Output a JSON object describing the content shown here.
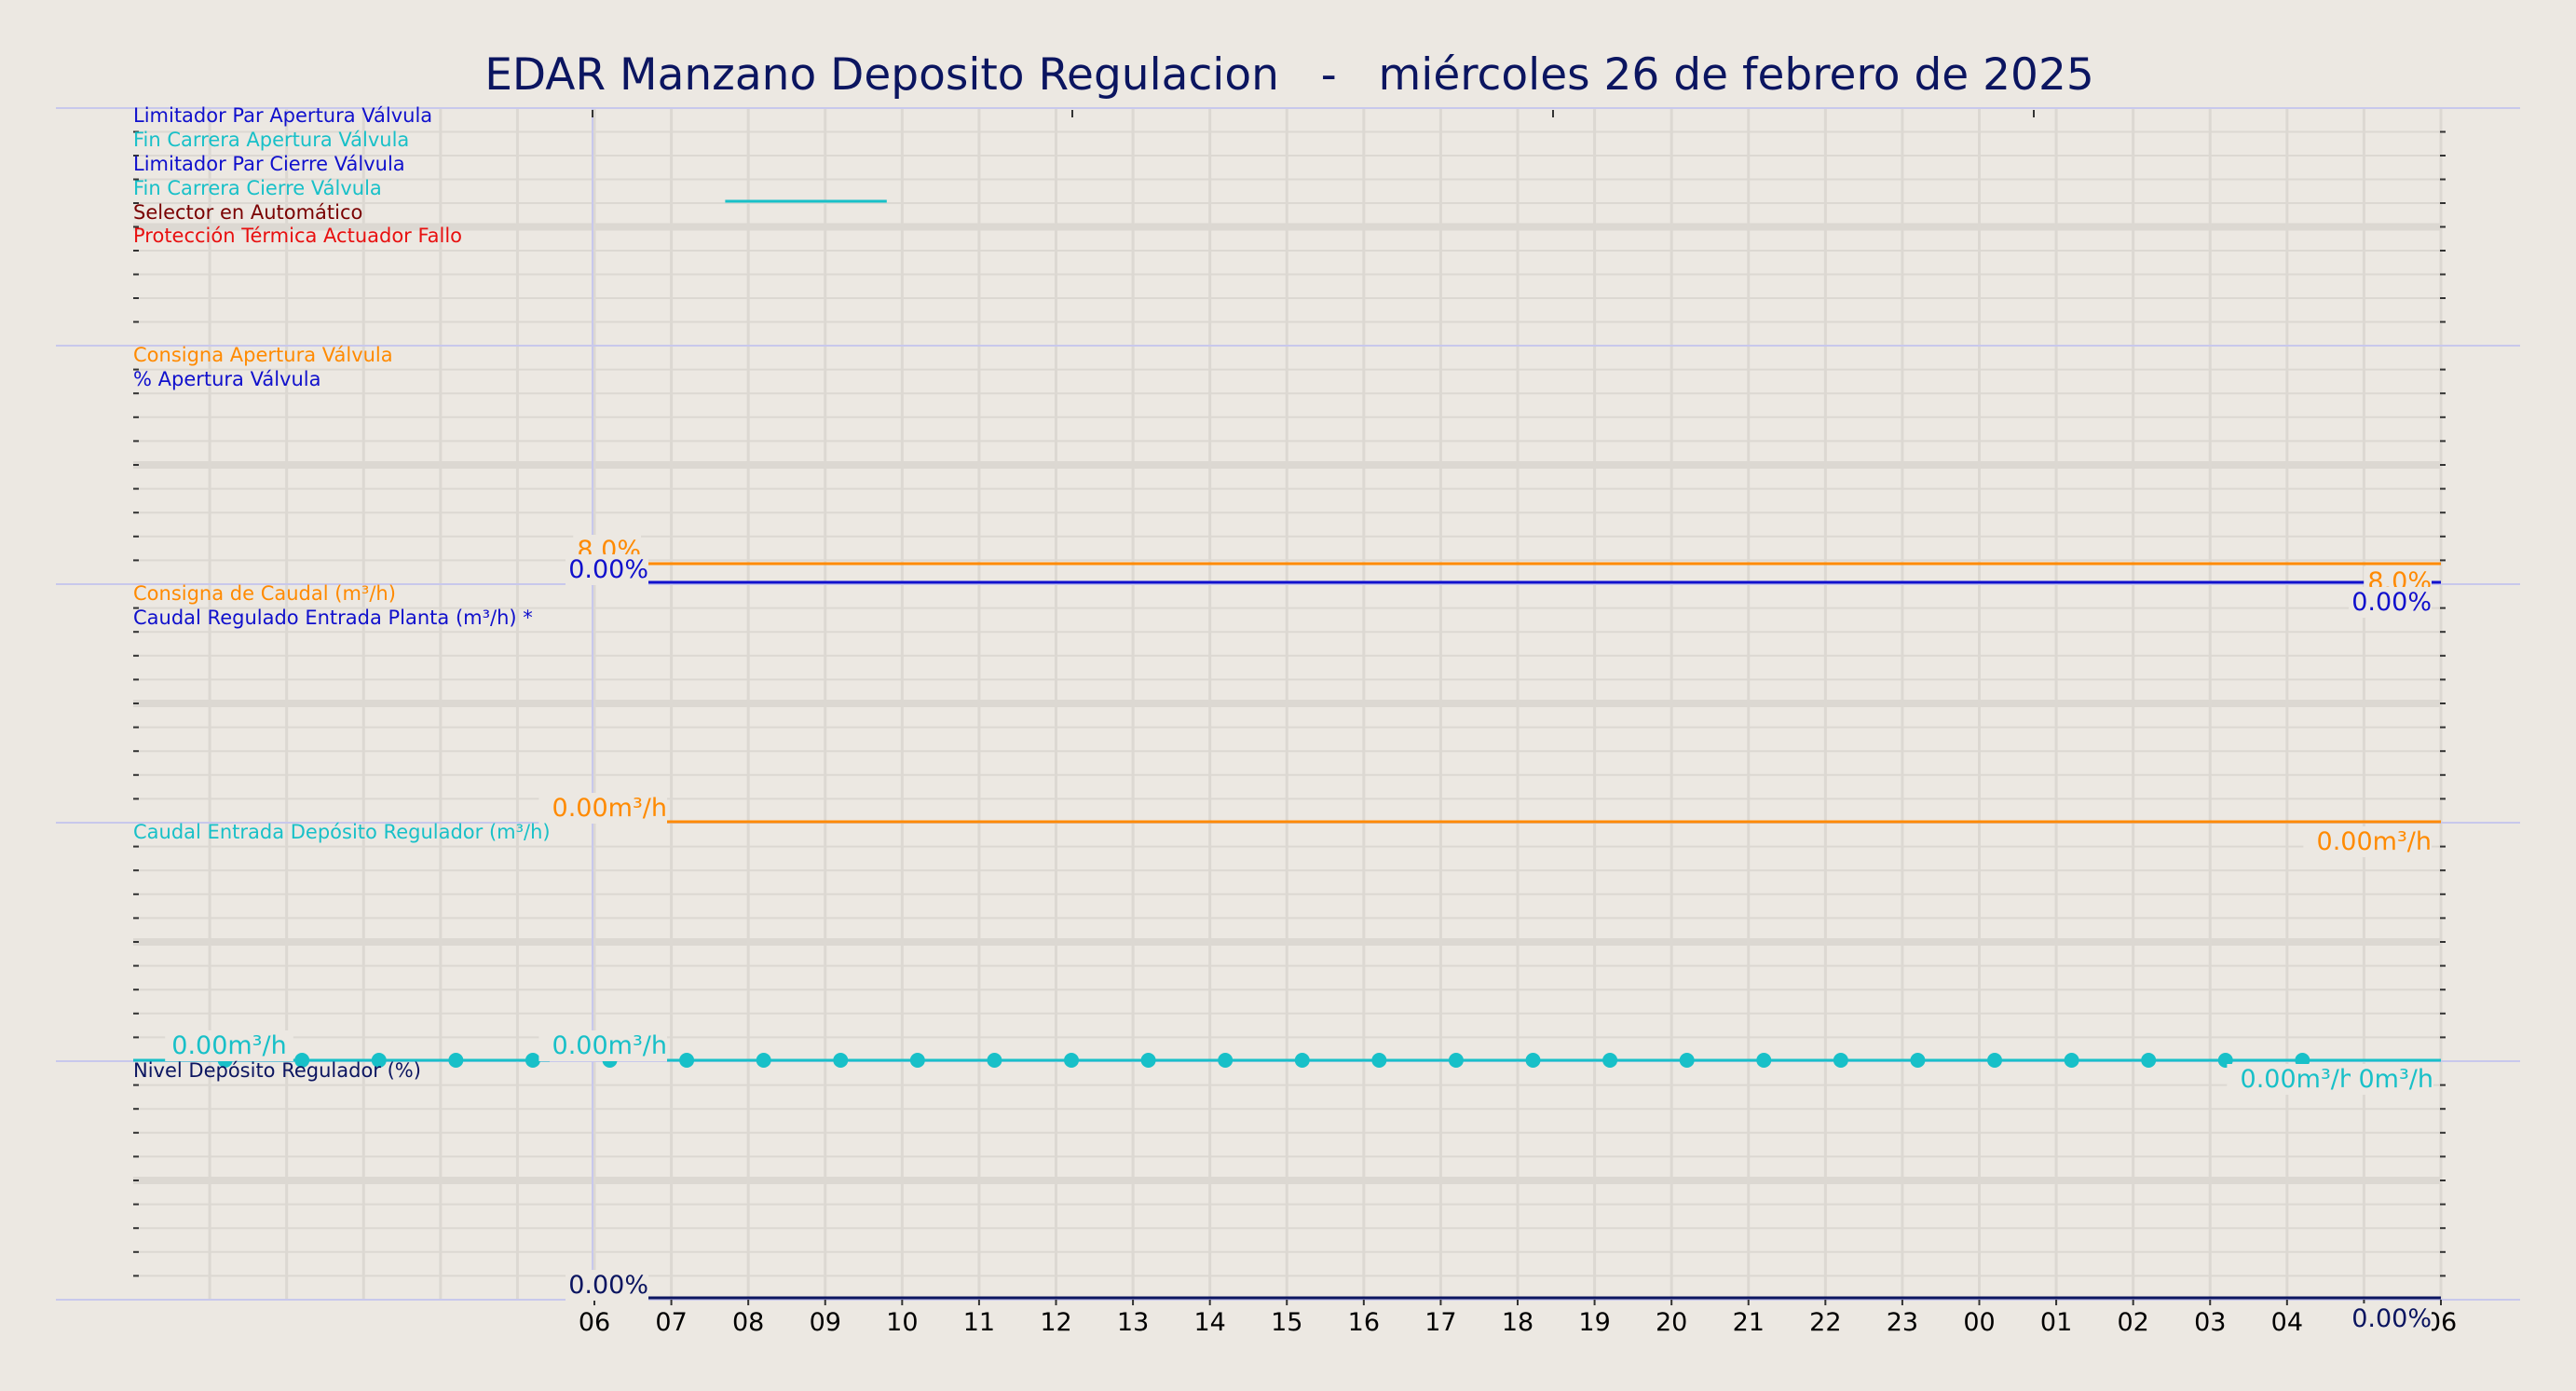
{
  "title": "EDAR Manzano Deposito Regulacion   -   miércoles 26 de febrero de 2025",
  "colors": {
    "background": "#ece8e2",
    "title": "#0b1560",
    "grid": "#dcd8d2",
    "separator": "#c8c8ec",
    "orange": "#ff8a00",
    "blue": "#1010cc",
    "cyan": "#18c0c8",
    "darkred": "#7a0000",
    "red": "#e81010",
    "navy": "#0b1560",
    "axis_text": "#000000"
  },
  "x_tick_labels": [
    "06",
    "07",
    "08",
    "09",
    "10",
    "11",
    "12",
    "13",
    "14",
    "15",
    "16",
    "17",
    "18",
    "19",
    "20",
    "21",
    "22",
    "23",
    "00",
    "01",
    "02",
    "03",
    "04",
    "05",
    "06"
  ],
  "chart_data": [
    {
      "type": "line",
      "panel": "estados",
      "series": [
        {
          "name": "Limitador Par Apertura Válvula",
          "color": "blue",
          "values": []
        },
        {
          "name": "Fin Carrera Apertura Válvula",
          "color": "cyan",
          "values": []
        },
        {
          "name": "Limitador Par Cierre Válvula",
          "color": "blue",
          "values": []
        },
        {
          "name": "Fin Carrera Cierre Válvula",
          "color": "cyan",
          "x": [
            1.7,
            3.8
          ],
          "values": [
            1,
            1
          ]
        },
        {
          "name": "Selector en Automático",
          "color": "darkred",
          "values": []
        },
        {
          "name": "Protección Térmica Actuador Fallo",
          "color": "red",
          "values": []
        }
      ]
    },
    {
      "type": "line",
      "panel": "apertura",
      "series": [
        {
          "name": "Consigna Apertura Válvula",
          "color": "orange",
          "x": [
            0,
            24
          ],
          "values": [
            8.0,
            8.0
          ],
          "start_label": "8.0%",
          "end_label": "8.0%"
        },
        {
          "name": "% Apertura Válvula",
          "color": "blue",
          "x": [
            0,
            24
          ],
          "values": [
            0.0,
            0.0
          ],
          "start_label": "0.00%",
          "end_label": "0.00%"
        }
      ],
      "ylim": [
        0,
        100
      ]
    },
    {
      "type": "line",
      "panel": "caudal",
      "series": [
        {
          "name": "Consigna de Caudal (m³/h)",
          "color": "orange",
          "x": [
            0,
            24
          ],
          "values": [
            0.0,
            0.0
          ],
          "start_label": "0.00m³/h",
          "end_label": "0.00m³/h"
        },
        {
          "name": "Caudal Regulado Entrada Planta (m³/h) *",
          "color": "blue",
          "values": []
        }
      ]
    },
    {
      "type": "line",
      "panel": "caudal-deposito",
      "series": [
        {
          "name": "Caudal Entrada Depósito Regulador (m³/h)",
          "color": "cyan",
          "x": [
            -4.8,
            -3.8,
            -2.8,
            -1.8,
            -0.8,
            0.2,
            1.2,
            2.2,
            3.2,
            4.2,
            5.2,
            6.2,
            7.2,
            8.2,
            9.2,
            10.2,
            11.2,
            12.2,
            13.2,
            14.2,
            15.2,
            16.2,
            17.2,
            18.2,
            19.2,
            20.2,
            21.2,
            22.2,
            23.2
          ],
          "values": [
            0,
            0,
            0,
            0,
            0,
            0,
            0,
            0,
            0,
            0,
            0,
            0,
            0,
            0,
            0,
            0,
            0,
            0,
            0,
            0,
            0,
            0,
            0,
            0,
            0,
            0,
            0,
            0,
            0
          ],
          "labels": [
            "0.00m³/h",
            "0.00m³/h",
            "0.00m³/h",
            "0m³/h"
          ]
        }
      ]
    },
    {
      "type": "line",
      "panel": "nivel",
      "series": [
        {
          "name": "Nivel Depósito Regulador (%)",
          "color": "navy",
          "x": [
            0,
            24
          ],
          "values": [
            0.0,
            0.0
          ],
          "start_label": "0.00%",
          "end_label": "0.00%"
        }
      ]
    }
  ]
}
